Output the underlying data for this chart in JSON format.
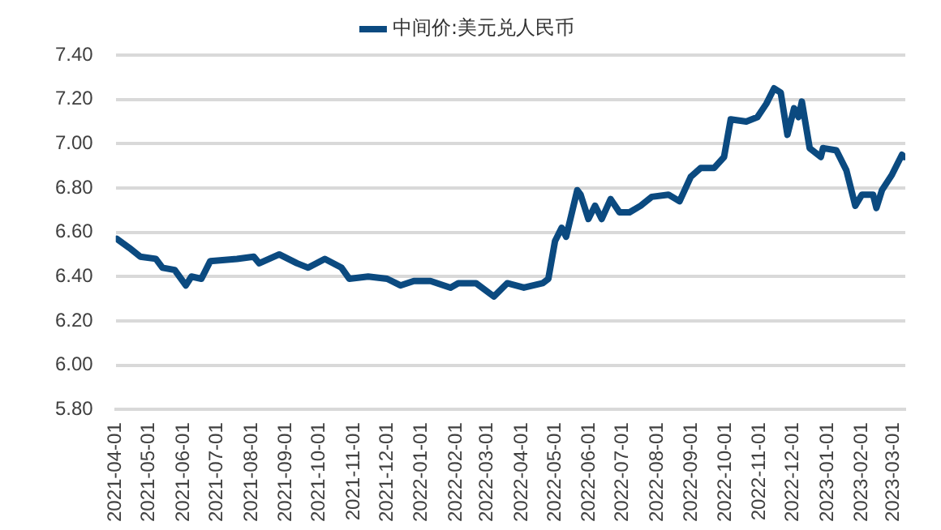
{
  "chart_data": {
    "type": "line",
    "x": [
      "2021-04-02",
      "2021-04-13",
      "2021-04-23",
      "2021-05-07",
      "2021-05-13",
      "2021-05-24",
      "2021-06-03",
      "2021-06-08",
      "2021-06-17",
      "2021-06-25",
      "2021-07-19",
      "2021-08-03",
      "2021-08-08",
      "2021-08-26",
      "2021-09-11",
      "2021-09-21",
      "2021-10-06",
      "2021-10-21",
      "2021-10-28",
      "2021-11-14",
      "2021-12-01",
      "2021-12-13",
      "2021-12-25",
      "2022-01-09",
      "2022-01-27",
      "2022-02-03",
      "2022-02-19",
      "2022-03-07",
      "2022-03-19",
      "2022-04-03",
      "2022-04-20",
      "2022-04-25",
      "2022-05-01",
      "2022-05-07",
      "2022-05-11",
      "2022-05-21",
      "2022-05-24",
      "2022-05-31",
      "2022-06-06",
      "2022-06-12",
      "2022-06-20",
      "2022-06-28",
      "2022-07-07",
      "2022-07-17",
      "2022-07-27",
      "2022-08-11",
      "2022-08-21",
      "2022-08-31",
      "2022-09-09",
      "2022-09-21",
      "2022-09-30",
      "2022-10-06",
      "2022-10-20",
      "2022-10-30",
      "2022-11-07",
      "2022-11-14",
      "2022-11-20",
      "2022-11-26",
      "2022-12-02",
      "2022-12-06",
      "2022-12-09",
      "2022-12-16",
      "2022-12-26",
      "2022-12-28",
      "2023-01-09",
      "2023-01-18",
      "2023-01-26",
      "2023-02-01",
      "2023-02-11",
      "2023-02-14",
      "2023-02-19",
      "2023-02-28",
      "2023-03-09",
      "2023-03-11"
    ],
    "series": [
      {
        "name": "中间价:美元兑人民币",
        "color": "#0b4a80",
        "values": [
          6.57,
          6.53,
          6.49,
          6.48,
          6.44,
          6.43,
          6.36,
          6.4,
          6.39,
          6.47,
          6.48,
          6.49,
          6.46,
          6.5,
          6.46,
          6.44,
          6.48,
          6.44,
          6.39,
          6.4,
          6.39,
          6.36,
          6.38,
          6.38,
          6.35,
          6.37,
          6.37,
          6.31,
          6.37,
          6.35,
          6.37,
          6.39,
          6.56,
          6.62,
          6.58,
          6.79,
          6.77,
          6.66,
          6.72,
          6.66,
          6.75,
          6.69,
          6.69,
          6.72,
          6.76,
          6.77,
          6.74,
          6.85,
          6.89,
          6.89,
          6.94,
          7.11,
          7.1,
          7.12,
          7.18,
          7.25,
          7.23,
          7.04,
          7.16,
          7.12,
          7.19,
          6.98,
          6.94,
          6.98,
          6.97,
          6.88,
          6.72,
          6.77,
          6.77,
          6.71,
          6.79,
          6.86,
          6.95,
          6.94
        ]
      }
    ],
    "xlim": [
      "2021-04-01",
      "2023-03-12"
    ],
    "xticks": [
      "2021-04-01",
      "2021-05-01",
      "2021-06-01",
      "2021-07-01",
      "2021-08-01",
      "2021-09-01",
      "2021-10-01",
      "2021-11-01",
      "2021-12-01",
      "2022-01-01",
      "2022-02-01",
      "2022-03-01",
      "2022-04-01",
      "2022-05-01",
      "2022-06-01",
      "2022-07-01",
      "2022-08-01",
      "2022-09-01",
      "2022-10-01",
      "2022-11-01",
      "2022-12-01",
      "2023-01-01",
      "2023-02-01",
      "2023-03-01"
    ],
    "ylim": [
      5.8,
      7.4
    ],
    "yticks": [
      {
        "value": 5.8,
        "label": "5.80"
      },
      {
        "value": 6.0,
        "label": "6.00"
      },
      {
        "value": 6.2,
        "label": "6.20"
      },
      {
        "value": 6.4,
        "label": "6.40"
      },
      {
        "value": 6.6,
        "label": "6.60"
      },
      {
        "value": 6.8,
        "label": "6.80"
      },
      {
        "value": 7.0,
        "label": "7.00"
      },
      {
        "value": 7.2,
        "label": "7.20"
      },
      {
        "value": 7.4,
        "label": "7.40"
      }
    ],
    "grid": "y",
    "legend": "top",
    "marker": "none",
    "line_style": "solid"
  }
}
